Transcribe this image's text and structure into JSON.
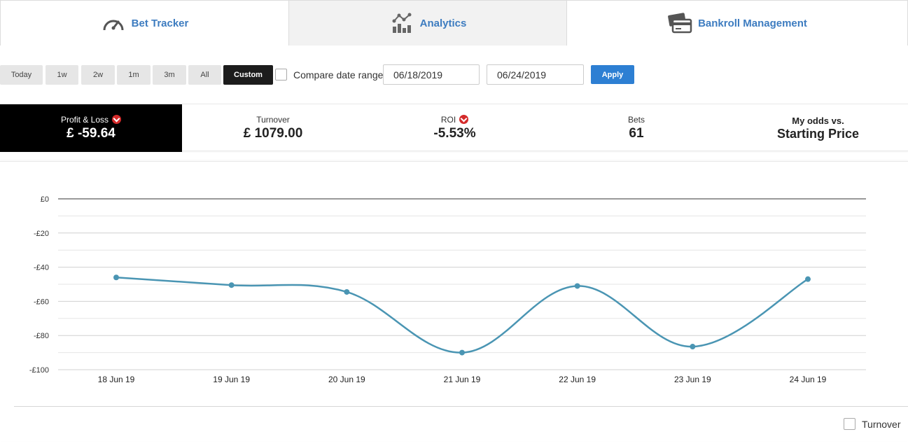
{
  "tabs": [
    {
      "label": "Bet Tracker",
      "icon": "speedometer-icon"
    },
    {
      "label": "Analytics",
      "icon": "analytics-chart-icon"
    },
    {
      "label": "Bankroll Management",
      "icon": "cards-icon"
    }
  ],
  "ranges": [
    "Today",
    "1w",
    "2w",
    "1m",
    "3m",
    "All",
    "Custom"
  ],
  "active_range": "Custom",
  "compare_label": "Compare date range",
  "date_from": "06/18/2019",
  "date_to": "06/24/2019",
  "apply_label": "Apply",
  "stats": {
    "pl_label": "Profit & Loss",
    "pl_value": "£ -59.64",
    "turnover_label": "Turnover",
    "turnover_value": "£ 1079.00",
    "roi_label": "ROI",
    "roi_value": "-5.53%",
    "bets_label": "Bets",
    "bets_value": "61",
    "odds_line1": "My odds vs.",
    "odds_line2": "Starting Price"
  },
  "colors": {
    "line": "#4a95b3",
    "accent": "#2d7fd3",
    "caret": "#d42a2a"
  },
  "chart_data": {
    "type": "line",
    "categories": [
      "18 Jun 19",
      "19 Jun 19",
      "20 Jun 19",
      "21 Jun 19",
      "22 Jun 19",
      "23 Jun 19",
      "24 Jun 19"
    ],
    "series": [
      {
        "values": [
          -46,
          -50.5,
          -54.5,
          -90,
          -51,
          -86.5,
          -47
        ]
      }
    ],
    "yticks": [
      "£0",
      "-£20",
      "-£40",
      "-£60",
      "-£80",
      "-£100"
    ],
    "ylim": [
      -100,
      0
    ],
    "grid": true,
    "legend": {
      "label": "Turnover",
      "placement": "bottom-right"
    }
  }
}
